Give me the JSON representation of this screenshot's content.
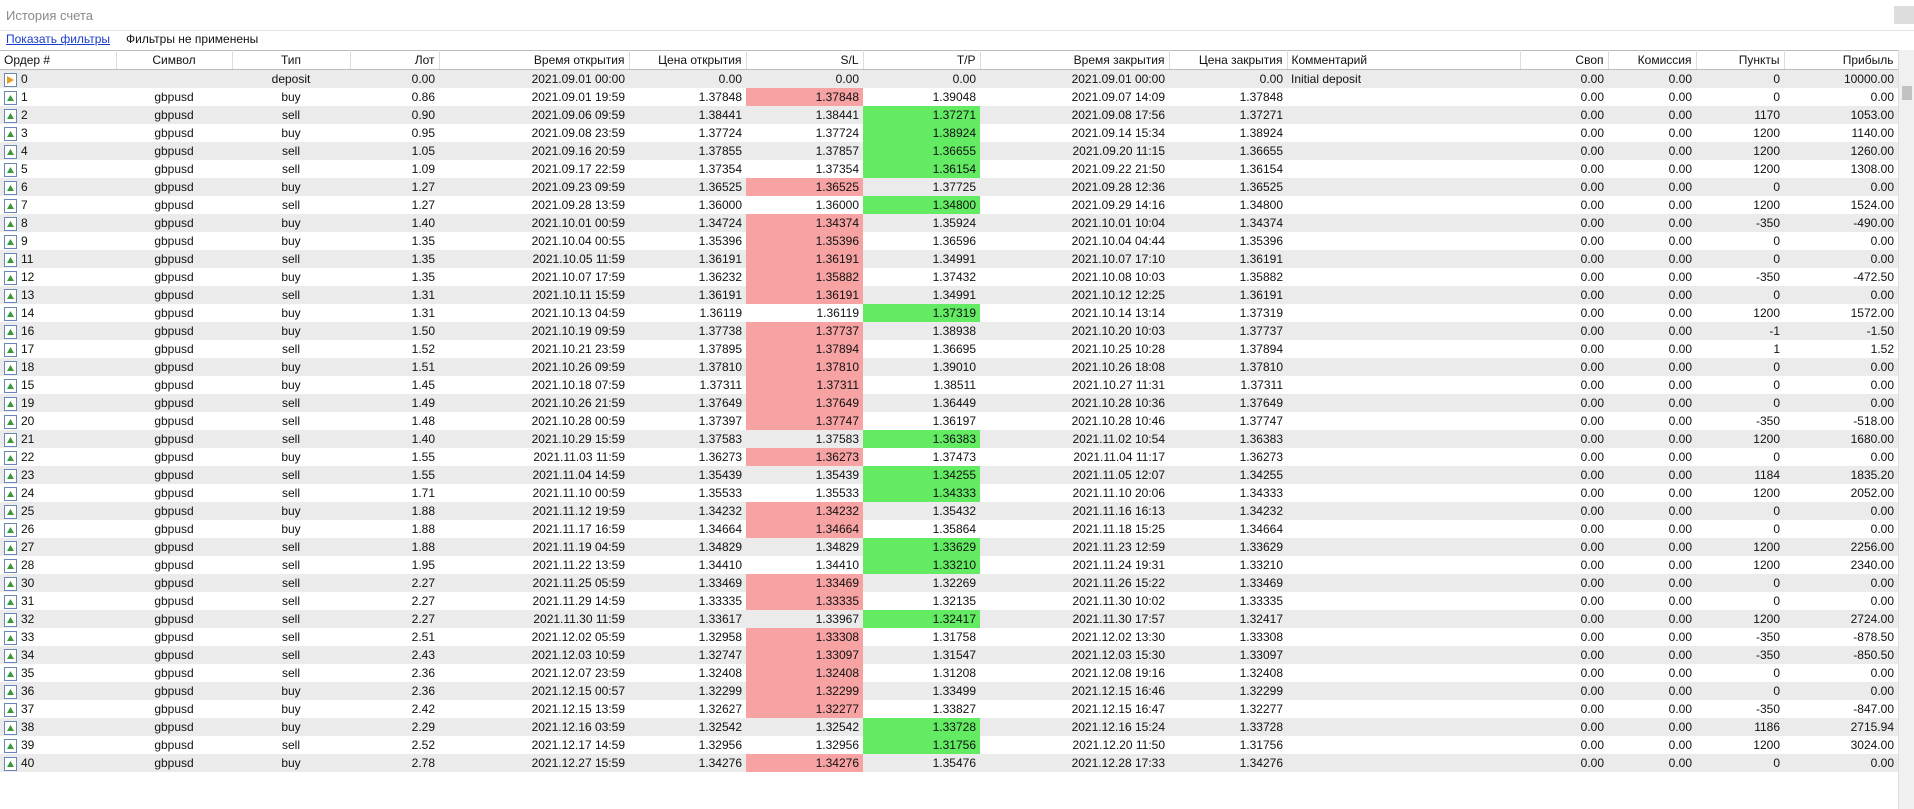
{
  "header": {
    "title": "История счета"
  },
  "filters": {
    "link": "Показать фильтры",
    "status": "Фильтры не применены"
  },
  "table": {
    "columns": [
      "Ордер #",
      "Символ",
      "Тип",
      "Лот",
      "Время открытия",
      "Цена открытия",
      "S/L",
      "T/P",
      "Время закрытия",
      "Цена закрытия",
      "Комментарий",
      "Своп",
      "Комиссия",
      "Пункты",
      "Прибыль"
    ],
    "rows": [
      [
        "0",
        null,
        "deposit",
        "0.00",
        "2021.09.01 00:00",
        "0.00",
        "0.00",
        "0.00",
        "2021.09.01 00:00",
        "0.00",
        "Initial deposit",
        "0.00",
        "0.00",
        "0",
        "10000.00"
      ],
      [
        "1",
        "gbpusd",
        "buy",
        "0.86",
        "2021.09.01 19:59",
        "1.37848",
        "1.37848",
        "1.39048",
        "2021.09.07 14:09",
        "1.37848",
        null,
        "0.00",
        "0.00",
        "0",
        "0.00"
      ],
      [
        "2",
        "gbpusd",
        "sell",
        "0.90",
        "2021.09.06 09:59",
        "1.38441",
        "1.38441",
        "1.37271",
        "2021.09.08 17:56",
        "1.37271",
        null,
        "0.00",
        "0.00",
        "1170",
        "1053.00"
      ],
      [
        "3",
        "gbpusd",
        "buy",
        "0.95",
        "2021.09.08 23:59",
        "1.37724",
        "1.37724",
        "1.38924",
        "2021.09.14 15:34",
        "1.38924",
        null,
        "0.00",
        "0.00",
        "1200",
        "1140.00"
      ],
      [
        "4",
        "gbpusd",
        "sell",
        "1.05",
        "2021.09.16 20:59",
        "1.37855",
        "1.37857",
        "1.36655",
        "2021.09.20 11:15",
        "1.36655",
        null,
        "0.00",
        "0.00",
        "1200",
        "1260.00"
      ],
      [
        "5",
        "gbpusd",
        "sell",
        "1.09",
        "2021.09.17 22:59",
        "1.37354",
        "1.37354",
        "1.36154",
        "2021.09.22 21:50",
        "1.36154",
        null,
        "0.00",
        "0.00",
        "1200",
        "1308.00"
      ],
      [
        "6",
        "gbpusd",
        "buy",
        "1.27",
        "2021.09.23 09:59",
        "1.36525",
        "1.36525",
        "1.37725",
        "2021.09.28 12:36",
        "1.36525",
        null,
        "0.00",
        "0.00",
        "0",
        "0.00"
      ],
      [
        "7",
        "gbpusd",
        "sell",
        "1.27",
        "2021.09.28 13:59",
        "1.36000",
        "1.36000",
        "1.34800",
        "2021.09.29 14:16",
        "1.34800",
        null,
        "0.00",
        "0.00",
        "1200",
        "1524.00"
      ],
      [
        "8",
        "gbpusd",
        "buy",
        "1.40",
        "2021.10.01 00:59",
        "1.34724",
        "1.34374",
        "1.35924",
        "2021.10.01 10:04",
        "1.34374",
        null,
        "0.00",
        "0.00",
        "-350",
        "-490.00"
      ],
      [
        "9",
        "gbpusd",
        "buy",
        "1.35",
        "2021.10.04 00:55",
        "1.35396",
        "1.35396",
        "1.36596",
        "2021.10.04 04:44",
        "1.35396",
        null,
        "0.00",
        "0.00",
        "0",
        "0.00"
      ],
      [
        "11",
        "gbpusd",
        "sell",
        "1.35",
        "2021.10.05 11:59",
        "1.36191",
        "1.36191",
        "1.34991",
        "2021.10.07 17:10",
        "1.36191",
        null,
        "0.00",
        "0.00",
        "0",
        "0.00"
      ],
      [
        "12",
        "gbpusd",
        "buy",
        "1.35",
        "2021.10.07 17:59",
        "1.36232",
        "1.35882",
        "1.37432",
        "2021.10.08 10:03",
        "1.35882",
        null,
        "0.00",
        "0.00",
        "-350",
        "-472.50"
      ],
      [
        "13",
        "gbpusd",
        "sell",
        "1.31",
        "2021.10.11 15:59",
        "1.36191",
        "1.36191",
        "1.34991",
        "2021.10.12 12:25",
        "1.36191",
        null,
        "0.00",
        "0.00",
        "0",
        "0.00"
      ],
      [
        "14",
        "gbpusd",
        "buy",
        "1.31",
        "2021.10.13 04:59",
        "1.36119",
        "1.36119",
        "1.37319",
        "2021.10.14 13:14",
        "1.37319",
        null,
        "0.00",
        "0.00",
        "1200",
        "1572.00"
      ],
      [
        "16",
        "gbpusd",
        "buy",
        "1.50",
        "2021.10.19 09:59",
        "1.37738",
        "1.37737",
        "1.38938",
        "2021.10.20 10:03",
        "1.37737",
        null,
        "0.00",
        "0.00",
        "-1",
        "-1.50"
      ],
      [
        "17",
        "gbpusd",
        "sell",
        "1.52",
        "2021.10.21 23:59",
        "1.37895",
        "1.37894",
        "1.36695",
        "2021.10.25 10:28",
        "1.37894",
        null,
        "0.00",
        "0.00",
        "1",
        "1.52"
      ],
      [
        "18",
        "gbpusd",
        "buy",
        "1.51",
        "2021.10.26 09:59",
        "1.37810",
        "1.37810",
        "1.39010",
        "2021.10.26 18:08",
        "1.37810",
        null,
        "0.00",
        "0.00",
        "0",
        "0.00"
      ],
      [
        "15",
        "gbpusd",
        "buy",
        "1.45",
        "2021.10.18 07:59",
        "1.37311",
        "1.37311",
        "1.38511",
        "2021.10.27 11:31",
        "1.37311",
        null,
        "0.00",
        "0.00",
        "0",
        "0.00"
      ],
      [
        "19",
        "gbpusd",
        "sell",
        "1.49",
        "2021.10.26 21:59",
        "1.37649",
        "1.37649",
        "1.36449",
        "2021.10.28 10:36",
        "1.37649",
        null,
        "0.00",
        "0.00",
        "0",
        "0.00"
      ],
      [
        "20",
        "gbpusd",
        "sell",
        "1.48",
        "2021.10.28 00:59",
        "1.37397",
        "1.37747",
        "1.36197",
        "2021.10.28 10:46",
        "1.37747",
        null,
        "0.00",
        "0.00",
        "-350",
        "-518.00"
      ],
      [
        "21",
        "gbpusd",
        "sell",
        "1.40",
        "2021.10.29 15:59",
        "1.37583",
        "1.37583",
        "1.36383",
        "2021.11.02 10:54",
        "1.36383",
        null,
        "0.00",
        "0.00",
        "1200",
        "1680.00"
      ],
      [
        "22",
        "gbpusd",
        "buy",
        "1.55",
        "2021.11.03 11:59",
        "1.36273",
        "1.36273",
        "1.37473",
        "2021.11.04 11:17",
        "1.36273",
        null,
        "0.00",
        "0.00",
        "0",
        "0.00"
      ],
      [
        "23",
        "gbpusd",
        "sell",
        "1.55",
        "2021.11.04 14:59",
        "1.35439",
        "1.35439",
        "1.34255",
        "2021.11.05 12:07",
        "1.34255",
        null,
        "0.00",
        "0.00",
        "1184",
        "1835.20"
      ],
      [
        "24",
        "gbpusd",
        "sell",
        "1.71",
        "2021.11.10 00:59",
        "1.35533",
        "1.35533",
        "1.34333",
        "2021.11.10 20:06",
        "1.34333",
        null,
        "0.00",
        "0.00",
        "1200",
        "2052.00"
      ],
      [
        "25",
        "gbpusd",
        "buy",
        "1.88",
        "2021.11.12 19:59",
        "1.34232",
        "1.34232",
        "1.35432",
        "2021.11.16 16:13",
        "1.34232",
        null,
        "0.00",
        "0.00",
        "0",
        "0.00"
      ],
      [
        "26",
        "gbpusd",
        "buy",
        "1.88",
        "2021.11.17 16:59",
        "1.34664",
        "1.34664",
        "1.35864",
        "2021.11.18 15:25",
        "1.34664",
        null,
        "0.00",
        "0.00",
        "0",
        "0.00"
      ],
      [
        "27",
        "gbpusd",
        "sell",
        "1.88",
        "2021.11.19 04:59",
        "1.34829",
        "1.34829",
        "1.33629",
        "2021.11.23 12:59",
        "1.33629",
        null,
        "0.00",
        "0.00",
        "1200",
        "2256.00"
      ],
      [
        "28",
        "gbpusd",
        "sell",
        "1.95",
        "2021.11.22 13:59",
        "1.34410",
        "1.34410",
        "1.33210",
        "2021.11.24 19:31",
        "1.33210",
        null,
        "0.00",
        "0.00",
        "1200",
        "2340.00"
      ],
      [
        "30",
        "gbpusd",
        "sell",
        "2.27",
        "2021.11.25 05:59",
        "1.33469",
        "1.33469",
        "1.32269",
        "2021.11.26 15:22",
        "1.33469",
        null,
        "0.00",
        "0.00",
        "0",
        "0.00"
      ],
      [
        "31",
        "gbpusd",
        "sell",
        "2.27",
        "2021.11.29 14:59",
        "1.33335",
        "1.33335",
        "1.32135",
        "2021.11.30 10:02",
        "1.33335",
        null,
        "0.00",
        "0.00",
        "0",
        "0.00"
      ],
      [
        "32",
        "gbpusd",
        "sell",
        "2.27",
        "2021.11.30 11:59",
        "1.33617",
        "1.33967",
        "1.32417",
        "2021.11.30 17:57",
        "1.32417",
        null,
        "0.00",
        "0.00",
        "1200",
        "2724.00"
      ],
      [
        "33",
        "gbpusd",
        "sell",
        "2.51",
        "2021.12.02 05:59",
        "1.32958",
        "1.33308",
        "1.31758",
        "2021.12.02 13:30",
        "1.33308",
        null,
        "0.00",
        "0.00",
        "-350",
        "-878.50"
      ],
      [
        "34",
        "gbpusd",
        "sell",
        "2.43",
        "2021.12.03 10:59",
        "1.32747",
        "1.33097",
        "1.31547",
        "2021.12.03 15:30",
        "1.33097",
        null,
        "0.00",
        "0.00",
        "-350",
        "-850.50"
      ],
      [
        "35",
        "gbpusd",
        "sell",
        "2.36",
        "2021.12.07 23:59",
        "1.32408",
        "1.32408",
        "1.31208",
        "2021.12.08 19:16",
        "1.32408",
        null,
        "0.00",
        "0.00",
        "0",
        "0.00"
      ],
      [
        "36",
        "gbpusd",
        "buy",
        "2.36",
        "2021.12.15 00:57",
        "1.32299",
        "1.32299",
        "1.33499",
        "2021.12.15 16:46",
        "1.32299",
        null,
        "0.00",
        "0.00",
        "0",
        "0.00"
      ],
      [
        "37",
        "gbpusd",
        "buy",
        "2.42",
        "2021.12.15 13:59",
        "1.32627",
        "1.32277",
        "1.33827",
        "2021.12.15 16:47",
        "1.32277",
        null,
        "0.00",
        "0.00",
        "-350",
        "-847.00"
      ],
      [
        "38",
        "gbpusd",
        "buy",
        "2.29",
        "2021.12.16 03:59",
        "1.32542",
        "1.32542",
        "1.33728",
        "2021.12.16 15:24",
        "1.33728",
        null,
        "0.00",
        "0.00",
        "1186",
        "2715.94"
      ],
      [
        "39",
        "gbpusd",
        "sell",
        "2.52",
        "2021.12.17 14:59",
        "1.32956",
        "1.32956",
        "1.31756",
        "2021.12.20 11:50",
        "1.31756",
        null,
        "0.00",
        "0.00",
        "1200",
        "3024.00"
      ],
      [
        "40",
        "gbpusd",
        "buy",
        "2.78",
        "2021.12.27 15:59",
        "1.34276",
        "1.34276",
        "1.35476",
        "2021.12.28 17:33",
        "1.34276",
        null,
        "0.00",
        "0.00",
        "0",
        "0.00"
      ]
    ],
    "highlights": [
      null,
      "sl",
      "tp",
      "tp",
      "tp",
      "tp",
      "sl",
      "tp",
      "sl",
      "sl",
      "sl",
      "sl",
      "sl",
      "tp",
      "sl",
      "sl",
      "sl",
      "sl",
      "sl",
      "sl",
      "tp",
      "sl",
      "tp",
      "tp",
      "sl",
      "sl",
      "tp",
      "tp",
      "sl",
      "sl",
      "tp",
      "sl",
      "sl",
      "sl",
      "sl",
      "sl",
      "tp",
      "tp",
      "sl"
    ],
    "highlight_colors": {
      "sl": "#f7a3a3",
      "tp": "#63ec63"
    }
  }
}
